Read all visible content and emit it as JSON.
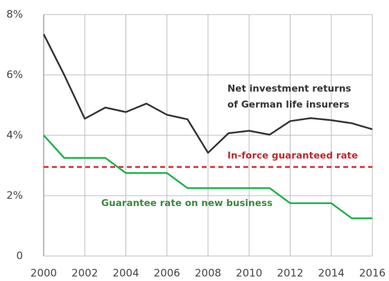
{
  "chart_data": {
    "type": "line",
    "x": [
      2000,
      2001,
      2002,
      2003,
      2004,
      2005,
      2006,
      2007,
      2008,
      2009,
      2010,
      2011,
      2012,
      2013,
      2014,
      2015,
      2016
    ],
    "series": [
      {
        "color": "#333333",
        "values": [
          7.35,
          6.0,
          4.55,
          4.92,
          4.77,
          5.05,
          4.68,
          4.53,
          3.42,
          4.07,
          4.15,
          4.02,
          4.47,
          4.57,
          4.5,
          4.4,
          4.2
        ],
        "annotation": [
          "Net investment returns",
          "of German life insurers"
        ]
      },
      {
        "color": "#1db14b",
        "values": [
          4.0,
          3.25,
          3.25,
          3.25,
          2.75,
          2.75,
          2.75,
          2.25,
          2.25,
          2.25,
          2.25,
          2.25,
          1.75,
          1.75,
          1.75,
          1.25,
          1.25
        ],
        "annotation": [
          "Guarantee rate on new business"
        ],
        "annotation_color": "#3a8a3a"
      }
    ],
    "reference_line": {
      "value": 2.95,
      "color": "#d9262e",
      "label": "In-force guaranteed rate",
      "label_color": "#c0272d"
    },
    "xlim": [
      2000,
      2016
    ],
    "xticks": [
      2000,
      2002,
      2004,
      2006,
      2008,
      2010,
      2012,
      2014,
      2016
    ],
    "ylim": [
      0,
      8
    ],
    "yticks": [
      0,
      {
        "value": 2,
        "label": "2%"
      },
      {
        "value": 4,
        "label": "4%"
      },
      {
        "value": 6,
        "label": "6%"
      },
      {
        "value": 8,
        "label": "8%"
      }
    ],
    "grid": true
  }
}
